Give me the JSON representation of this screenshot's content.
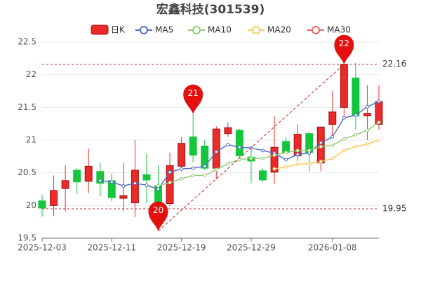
{
  "chart_data": {
    "type": "candlestick",
    "title": "宏鑫科技(301539)",
    "categories": [
      "2025-12-03",
      null,
      null,
      null,
      null,
      null,
      "2025-12-11",
      null,
      null,
      null,
      null,
      null,
      "2025-12-19",
      null,
      null,
      null,
      null,
      null,
      "2025-12-29",
      null,
      null,
      null,
      null,
      null,
      null,
      "2026-01-08",
      null,
      null,
      null,
      null
    ],
    "candles": {
      "name": "日K",
      "up_color": "#eb2a2a",
      "down_color": "#14c63c",
      "open": [
        20.07,
        20.0,
        20.26,
        20.54,
        20.37,
        20.52,
        20.38,
        20.11,
        20.04,
        20.47,
        20.3,
        20.03,
        20.6,
        21.05,
        20.91,
        20.57,
        21.1,
        21.15,
        20.74,
        20.53,
        20.51,
        20.98,
        20.76,
        21.1,
        20.65,
        21.24,
        21.5,
        21.95,
        21.37,
        21.24
      ],
      "close": [
        19.96,
        20.23,
        20.38,
        20.36,
        20.6,
        20.34,
        20.12,
        20.15,
        20.54,
        20.39,
        20.03,
        20.61,
        20.95,
        20.77,
        20.57,
        21.17,
        21.19,
        20.76,
        20.68,
        20.39,
        20.89,
        20.81,
        21.09,
        20.81,
        21.2,
        21.43,
        22.16,
        21.37,
        21.41,
        21.59
      ],
      "high": [
        20.16,
        20.46,
        20.62,
        20.57,
        20.87,
        20.65,
        20.49,
        20.65,
        21.0,
        20.79,
        20.62,
        20.81,
        21.05,
        21.4,
        21.0,
        21.21,
        21.27,
        21.17,
        20.89,
        20.57,
        21.37,
        21.05,
        21.24,
        21.13,
        21.21,
        21.75,
        22.16,
        22.18,
        21.84,
        21.84
      ],
      "low": [
        19.83,
        19.84,
        19.91,
        20.18,
        20.19,
        20.14,
        20.06,
        19.91,
        19.82,
        20.04,
        19.61,
        19.99,
        20.52,
        20.66,
        20.54,
        20.4,
        21.05,
        20.7,
        20.34,
        20.36,
        20.33,
        20.79,
        20.68,
        20.52,
        20.52,
        21.06,
        21.37,
        21.16,
        21.0,
        21.16
      ]
    },
    "series": [
      {
        "name": "MA5",
        "color": "#5470c6",
        "values": [
          null,
          null,
          null,
          null,
          null,
          20.38,
          20.36,
          20.3,
          20.34,
          20.31,
          20.25,
          20.51,
          20.56,
          20.57,
          20.6,
          20.82,
          20.93,
          20.89,
          20.88,
          20.84,
          20.8,
          20.7,
          20.78,
          20.8,
          20.96,
          21.05,
          21.34,
          21.38,
          21.51,
          21.59
        ]
      },
      {
        "name": "MA10",
        "color": "#91cc75",
        "values": [
          null,
          null,
          null,
          null,
          null,
          null,
          null,
          null,
          null,
          null,
          20.3,
          20.35,
          20.41,
          20.46,
          20.46,
          20.55,
          20.64,
          20.7,
          20.72,
          20.72,
          20.77,
          20.81,
          20.84,
          20.84,
          20.9,
          20.92,
          21.02,
          21.08,
          21.15,
          21.27
        ]
      },
      {
        "name": "MA20",
        "color": "#fac858",
        "values": [
          null,
          null,
          null,
          null,
          null,
          null,
          null,
          null,
          null,
          null,
          null,
          null,
          null,
          null,
          null,
          null,
          null,
          null,
          null,
          null,
          20.56,
          20.59,
          20.63,
          20.64,
          20.67,
          20.72,
          20.84,
          20.9,
          20.94,
          21.0
        ]
      },
      {
        "name": "MA30",
        "color": "#ee6666",
        "values": [
          null,
          null,
          null,
          null,
          null,
          null,
          null,
          null,
          null,
          null,
          null,
          null,
          null,
          null,
          null,
          null,
          null,
          null,
          null,
          null,
          null,
          null,
          null,
          null,
          null,
          null,
          null,
          null,
          null,
          null
        ]
      }
    ],
    "pins": [
      {
        "label": "20",
        "index": 10,
        "value": 19.61
      },
      {
        "label": "21",
        "index": 13,
        "value": 21.4
      },
      {
        "label": "22",
        "index": 26,
        "value": 22.16
      }
    ],
    "hlines": [
      22.16,
      19.95
    ],
    "pin_color": "#e3100f",
    "ylim": [
      19.5,
      22.5
    ],
    "yticks": [
      19.5,
      20,
      20.5,
      21,
      21.5,
      22,
      22.5
    ],
    "grid": true
  }
}
